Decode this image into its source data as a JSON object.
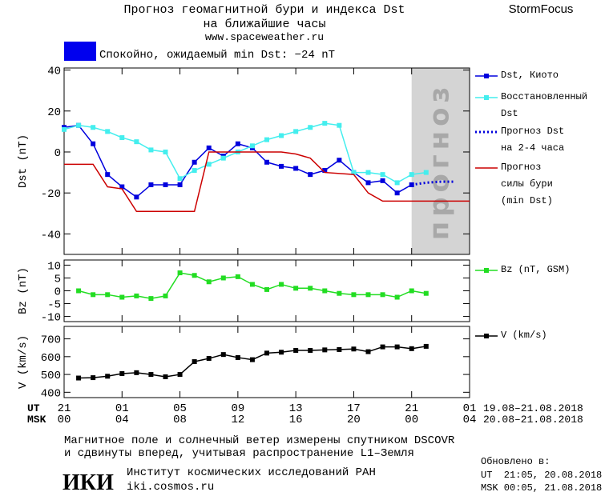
{
  "header": {
    "title": "Прогноз геомагнитной бури и индекса Dst",
    "subtitle": "на ближайшие часы",
    "url": "www.spaceweather.ru",
    "brand": "StormFocus"
  },
  "status": {
    "text": "Спокойно, ожидаемый min Dst: −24 nT",
    "color": "#0000ee"
  },
  "chart_data": [
    {
      "type": "line",
      "y_label": "Dst (nT)",
      "ylim": [
        -50,
        41
      ],
      "yticks": [
        40,
        20,
        0,
        -20,
        -40
      ],
      "forecast_region": {
        "xlim": [
          24,
          28
        ],
        "label": "прогноз",
        "color": "#d4d4d4"
      },
      "series": [
        {
          "name": "Dst, Киото",
          "color": "#0000dd",
          "marker": "square",
          "dash": false,
          "x": [
            0,
            1,
            2,
            3,
            4,
            5,
            6,
            7,
            8,
            9,
            10,
            11,
            12,
            13,
            14,
            15,
            16,
            17,
            18,
            19,
            20,
            21,
            22,
            23,
            24
          ],
          "values": [
            12,
            13,
            4,
            -11,
            -17,
            -22,
            -16,
            -16,
            -16,
            -5,
            2,
            -2,
            4,
            2,
            -5,
            -7,
            -8,
            -11,
            -9,
            -4,
            -10,
            -15,
            -14,
            -20,
            -16
          ]
        },
        {
          "name": "Восстановленный\nDst",
          "color": "#44eeee",
          "marker": "square",
          "dash": false,
          "x": [
            0,
            1,
            2,
            3,
            4,
            5,
            6,
            7,
            8,
            9,
            10,
            11,
            12,
            13,
            14,
            15,
            16,
            17,
            18,
            19,
            20,
            21,
            22,
            23,
            24,
            25
          ],
          "values": [
            11,
            13,
            12,
            10,
            7,
            5,
            1,
            0,
            -13,
            -9,
            -6,
            -3,
            0,
            3,
            6,
            8,
            10,
            12,
            14,
            13,
            -10,
            -10,
            -11,
            -15,
            -11,
            -10
          ]
        },
        {
          "name": "Прогноз Dst\nна 2-4 часа",
          "color": "#0000dd",
          "marker": "none",
          "dash": true,
          "x": [
            24,
            25,
            26,
            27
          ],
          "values": [
            -16,
            -15,
            -14.5,
            -14.5
          ]
        },
        {
          "name": "Прогноз\nсилы бури\n(min Dst)",
          "color": "#cc0000",
          "marker": "none",
          "dash": false,
          "x": [
            0,
            2,
            3,
            4,
            5,
            9,
            10,
            15,
            16,
            17,
            18,
            20,
            21,
            22,
            28
          ],
          "values": [
            -6,
            -6,
            -17,
            -18,
            -29,
            -29,
            0,
            0,
            -1,
            -3,
            -10,
            -11,
            -20,
            -24,
            -24
          ]
        }
      ]
    },
    {
      "type": "line",
      "y_label": "Bz (nT)",
      "ylim": [
        -12,
        12
      ],
      "yticks": [
        10,
        5,
        0,
        -5,
        -10
      ],
      "series": [
        {
          "name": "Bz (nT, GSM)",
          "color": "#22dd22",
          "marker": "square",
          "dash": false,
          "x": [
            1,
            2,
            3,
            4,
            5,
            6,
            7,
            8,
            9,
            10,
            11,
            12,
            13,
            14,
            15,
            16,
            17,
            18,
            19,
            20,
            21,
            22,
            23,
            24,
            25
          ],
          "values": [
            0,
            -1.5,
            -1.5,
            -2.5,
            -2,
            -3,
            -2,
            7,
            6,
            3.5,
            5,
            5.5,
            2.5,
            0.5,
            2.5,
            1,
            1,
            0,
            -1,
            -1.5,
            -1.5,
            -1.5,
            -2.5,
            0,
            -1
          ]
        }
      ]
    },
    {
      "type": "line",
      "y_label": "V (km/s)",
      "ylim": [
        370,
        770
      ],
      "yticks": [
        400,
        500,
        600,
        700
      ],
      "xlim": [
        0,
        28
      ],
      "xticks": [
        {
          "value": 0,
          "label": "21"
        },
        {
          "value": 4,
          "label": "01"
        },
        {
          "value": 8,
          "label": "05"
        },
        {
          "value": 12,
          "label": "09"
        },
        {
          "value": 16,
          "label": "13"
        },
        {
          "value": 20,
          "label": "17"
        },
        {
          "value": 24,
          "label": "21"
        },
        {
          "value": 28,
          "label": "01"
        }
      ],
      "msk_xticks": [
        "00",
        "04",
        "08",
        "12",
        "16",
        "20",
        "00",
        "04"
      ],
      "ut_label": "UT",
      "msk_label": "MSK",
      "ut_range": "19.08–21.08.2018",
      "msk_range": "20.08–21.08.2018",
      "series": [
        {
          "name": "V (km/s)",
          "color": "#000000",
          "marker": "square",
          "dash": false,
          "x": [
            1,
            2,
            3,
            4,
            5,
            6,
            7,
            8,
            9,
            10,
            11,
            12,
            13,
            14,
            15,
            16,
            17,
            18,
            19,
            20,
            21,
            22,
            23,
            24,
            25
          ],
          "values": [
            480,
            482,
            490,
            505,
            510,
            500,
            487,
            500,
            572,
            590,
            612,
            595,
            583,
            620,
            625,
            635,
            635,
            638,
            640,
            643,
            628,
            655,
            655,
            645,
            658
          ]
        }
      ]
    }
  ],
  "footer": {
    "note_line1": "Магнитное поле и солнечный ветер измерены спутником DSCOVR",
    "note_line2": "и сдвинуты вперед, учитывая распространение L1–Земля",
    "logo": "ИКИ",
    "institute": "Институт космических исследований РАН",
    "site": "iki.cosmos.ru",
    "updated": "Обновлено в:",
    "updated_ut": "UT  21:05, 20.08.2018",
    "updated_msk": "MSK 00:05, 21.08.2018"
  }
}
